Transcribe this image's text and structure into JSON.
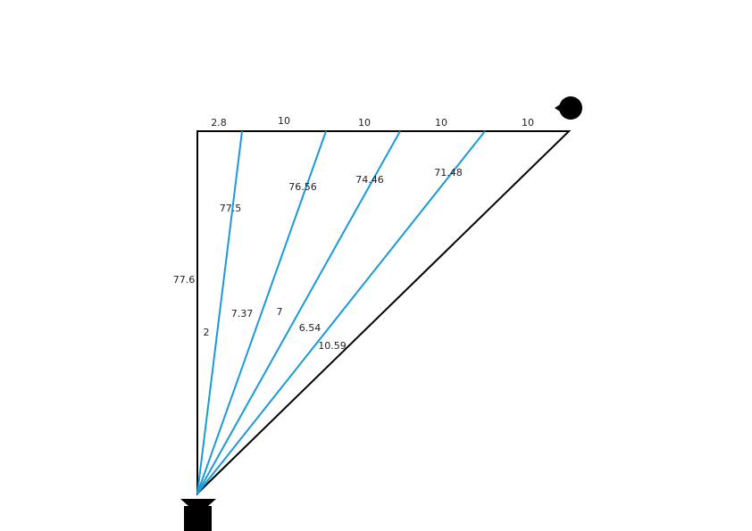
{
  "top_segments": [
    "2.8",
    "10",
    "10",
    "10",
    "10"
  ],
  "left_side": "77.6",
  "ray_lengths": [
    "77.5",
    "76.56",
    "74.46",
    "71.48"
  ],
  "angles": [
    "2",
    "7.37",
    "7",
    "6.54",
    "10.59"
  ]
}
